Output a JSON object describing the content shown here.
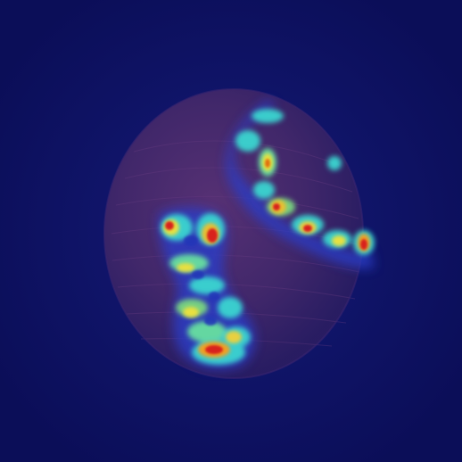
{
  "image": {
    "colors": {
      "background": "#0c0f5e",
      "sphere": "#4a2a6a",
      "heatmap_low": "#2a3cc8",
      "heatmap_mid_cyan": "#3ad6d0",
      "heatmap_mid_yellow": "#e8e040",
      "heatmap_high": "#d8241c"
    }
  }
}
